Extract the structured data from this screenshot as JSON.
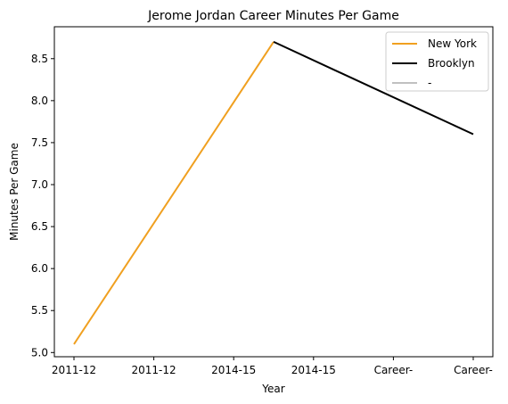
{
  "chart_data": {
    "type": "line",
    "title": "Jerome Jordan Career Minutes Per Game",
    "xlabel": "Year",
    "ylabel": "Minutes Per Game",
    "categories": [
      "2011-12",
      "2011-12",
      "2014-15",
      "2014-15",
      "Career-",
      "Career-"
    ],
    "ylim": [
      4.95,
      8.88
    ],
    "yticks": [
      "5.0",
      "5.5",
      "6.0",
      "6.5",
      "7.0",
      "7.5",
      "8.0",
      "8.5"
    ],
    "grid": false,
    "legend_position": "top-right",
    "series": [
      {
        "name": "New York",
        "color": "#f0a020",
        "x": [
          0,
          2.5
        ],
        "y": [
          5.1,
          8.7
        ]
      },
      {
        "name": "Brooklyn",
        "color": "#000000",
        "x": [
          2.5,
          5
        ],
        "y": [
          8.7,
          7.6
        ]
      },
      {
        "name": "-",
        "color": "#c0c0c0",
        "x": [],
        "y": []
      }
    ]
  }
}
